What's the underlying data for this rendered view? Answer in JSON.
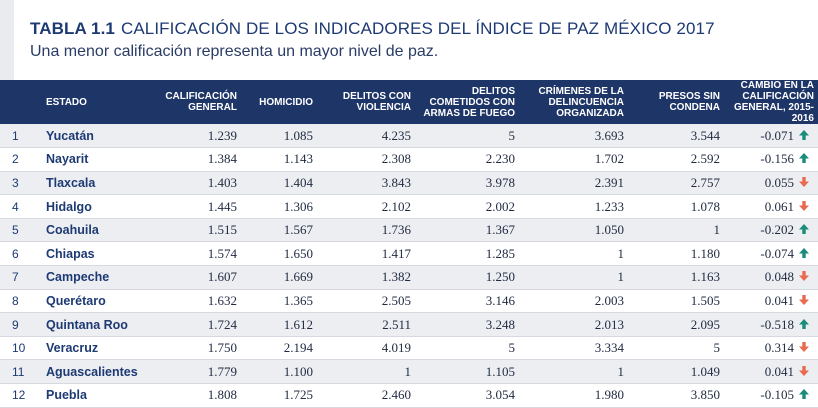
{
  "title": {
    "tag": "TABLA 1.1",
    "text": "CALIFICACIÓN DE LOS INDICADORES DEL ÍNDICE DE PAZ MÉXICO 2017",
    "subtitle": "Una menor calificación representa un mayor nivel de paz."
  },
  "columns": [
    "",
    "ESTADO",
    "CALIFICACIÓN GENERAL",
    "HOMICIDIO",
    "DELITOS CON VIOLENCIA",
    "DELITOS COMETIDOS CON ARMAS DE FUEGO",
    "CRÍMENES DE LA DELINCUENCIA ORGANIZADA",
    "PRESOS SIN CONDENA",
    "CAMBIO EN LA CALIFICACIÓN GENERAL, 2015-2016"
  ],
  "colors": {
    "up": "#1a8c7a",
    "down": "#e86a4f",
    "header": "#1e3568"
  },
  "rows": [
    {
      "rank": "1",
      "state": "Yucatán",
      "general": "1.239",
      "homicidio": "1.085",
      "violencia": "4.235",
      "armas": "5",
      "crimenes": "3.693",
      "presos": "3.544",
      "cambio": "-0.071",
      "trend": "up"
    },
    {
      "rank": "2",
      "state": "Nayarit",
      "general": "1.384",
      "homicidio": "1.143",
      "violencia": "2.308",
      "armas": "2.230",
      "crimenes": "1.702",
      "presos": "2.592",
      "cambio": "-0.156",
      "trend": "up"
    },
    {
      "rank": "3",
      "state": "Tlaxcala",
      "general": "1.403",
      "homicidio": "1.404",
      "violencia": "3.843",
      "armas": "3.978",
      "crimenes": "2.391",
      "presos": "2.757",
      "cambio": "0.055",
      "trend": "down"
    },
    {
      "rank": "4",
      "state": "Hidalgo",
      "general": "1.445",
      "homicidio": "1.306",
      "violencia": "2.102",
      "armas": "2.002",
      "crimenes": "1.233",
      "presos": "1.078",
      "cambio": "0.061",
      "trend": "down"
    },
    {
      "rank": "5",
      "state": "Coahuila",
      "general": "1.515",
      "homicidio": "1.567",
      "violencia": "1.736",
      "armas": "1.367",
      "crimenes": "1.050",
      "presos": "1",
      "cambio": "-0.202",
      "trend": "up"
    },
    {
      "rank": "6",
      "state": "Chiapas",
      "general": "1.574",
      "homicidio": "1.650",
      "violencia": "1.417",
      "armas": "1.285",
      "crimenes": "1",
      "presos": "1.180",
      "cambio": "-0.074",
      "trend": "up"
    },
    {
      "rank": "7",
      "state": "Campeche",
      "general": "1.607",
      "homicidio": "1.669",
      "violencia": "1.382",
      "armas": "1.250",
      "crimenes": "1",
      "presos": "1.163",
      "cambio": "0.048",
      "trend": "down"
    },
    {
      "rank": "8",
      "state": "Querétaro",
      "general": "1.632",
      "homicidio": "1.365",
      "violencia": "2.505",
      "armas": "3.146",
      "crimenes": "2.003",
      "presos": "1.505",
      "cambio": "0.041",
      "trend": "down"
    },
    {
      "rank": "9",
      "state": "Quintana Roo",
      "general": "1.724",
      "homicidio": "1.612",
      "violencia": "2.511",
      "armas": "3.248",
      "crimenes": "2.013",
      "presos": "2.095",
      "cambio": "-0.518",
      "trend": "up"
    },
    {
      "rank": "10",
      "state": "Veracruz",
      "general": "1.750",
      "homicidio": "2.194",
      "violencia": "4.019",
      "armas": "5",
      "crimenes": "3.334",
      "presos": "5",
      "cambio": "0.314",
      "trend": "down"
    },
    {
      "rank": "11",
      "state": "Aguascalientes",
      "general": "1.779",
      "homicidio": "1.100",
      "violencia": "1",
      "armas": "1.105",
      "crimenes": "1",
      "presos": "1.049",
      "cambio": "0.041",
      "trend": "down"
    },
    {
      "rank": "12",
      "state": "Puebla",
      "general": "1.808",
      "homicidio": "1.725",
      "violencia": "2.460",
      "armas": "3.054",
      "crimenes": "1.980",
      "presos": "3.850",
      "cambio": "-0.105",
      "trend": "up"
    }
  ]
}
